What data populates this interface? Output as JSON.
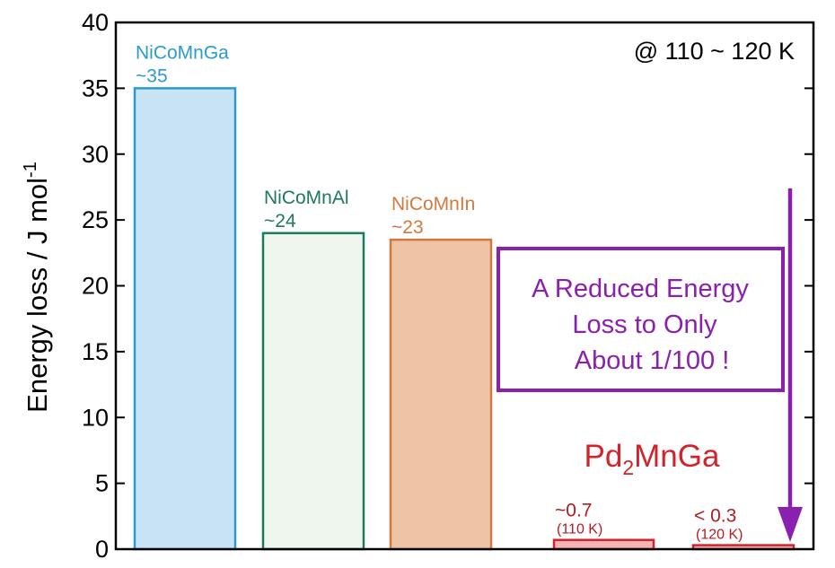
{
  "chart_data": {
    "type": "bar",
    "ylabel_main": "Energy loss / J mol",
    "ylabel_sup": "-1",
    "ylim": [
      0,
      40
    ],
    "yticks": [
      0,
      5,
      10,
      15,
      20,
      25,
      30,
      35,
      40
    ],
    "condition_label": "@ 110 ~ 120 K",
    "bars": [
      {
        "name": "NiCoMnGa",
        "value": 35,
        "value_label": "~35",
        "sub_label": "",
        "fill": "#c8e4f4",
        "stroke": "#2a9ad0",
        "text_color": "#2a9ad0"
      },
      {
        "name": "NiCoMnAl",
        "value": 24,
        "value_label": "~24",
        "sub_label": "",
        "fill": "#eef6ee",
        "stroke": "#1e7a5a",
        "text_color": "#1e7a5a"
      },
      {
        "name": "NiCoMnIn",
        "value": 23.5,
        "value_label": "~23",
        "sub_label": "",
        "fill": "#eec3a6",
        "stroke": "#d07a40",
        "text_color": "#d07a40"
      },
      {
        "name": "",
        "value": 0.7,
        "value_label": "~0.7",
        "sub_label": "(110 K)",
        "fill": "#f8b4b4",
        "stroke": "#d2222a",
        "text_color": "#b01c24"
      },
      {
        "name": "",
        "value": 0.3,
        "value_label": "< 0.3",
        "sub_label": "(120 K)",
        "fill": "#f8b4b4",
        "stroke": "#d2222a",
        "text_color": "#b01c24"
      }
    ],
    "group_label": {
      "prefix": "Pd",
      "sub": "2",
      "suffix": "MnGa"
    },
    "callout_lines": [
      "A Reduced Energy",
      "Loss to Only",
      "About 1/100 !"
    ],
    "colors": {
      "callout": "#8a1fb0",
      "group": "#d2222a",
      "axis": "#000000"
    }
  }
}
